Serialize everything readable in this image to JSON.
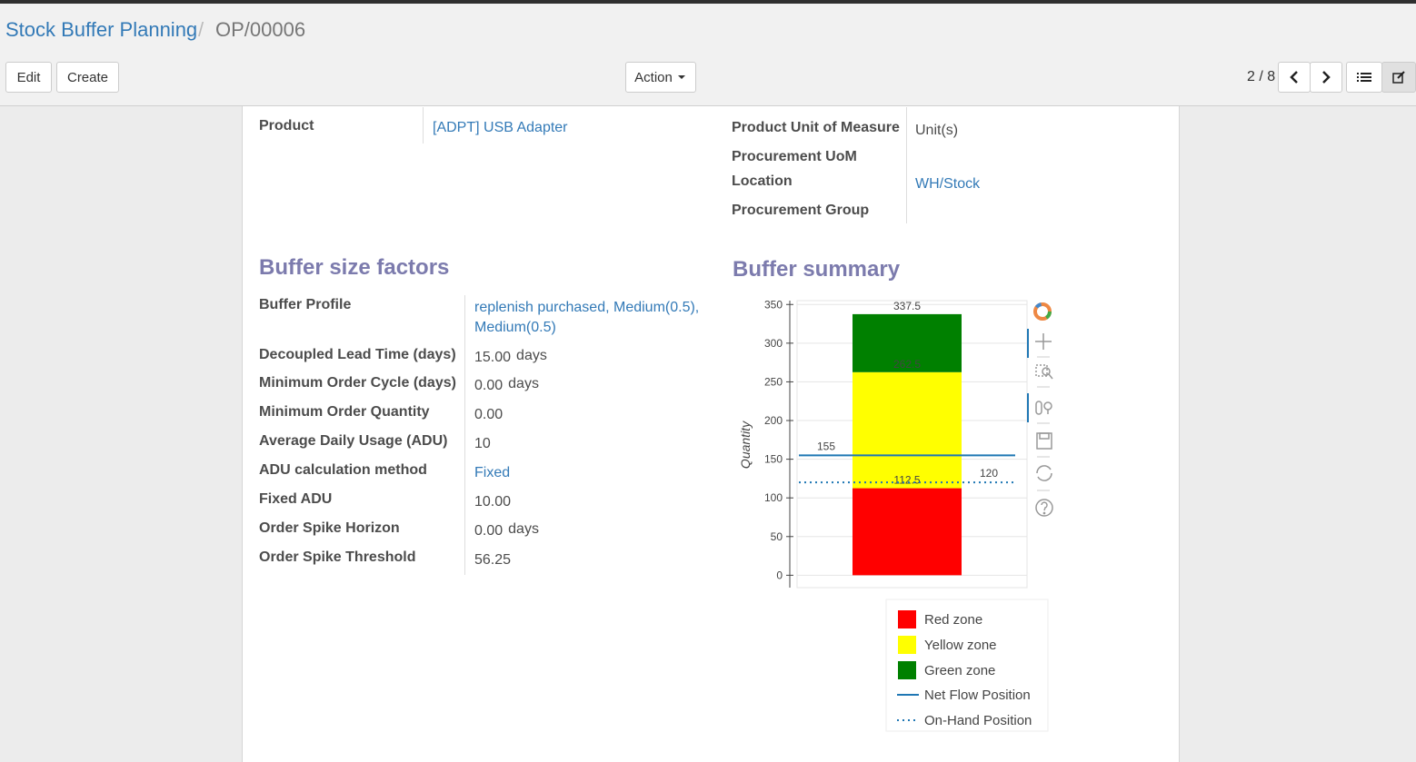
{
  "breadcrumb": {
    "parent": "Stock Buffer Planning",
    "separator": "/",
    "current": "OP/00006"
  },
  "buttons": {
    "edit": "Edit",
    "create": "Create",
    "action": "Action"
  },
  "pager": "2 / 8",
  "main_fields": {
    "left": [
      {
        "label": "Product",
        "value": "[ADPT] USB Adapter",
        "link": true
      }
    ],
    "right": [
      {
        "label": "Product Unit of Measure",
        "value": "Unit(s)"
      },
      {
        "label": "Procurement UoM"
      },
      {
        "label": "Location",
        "value": "WH/Stock",
        "link": true
      },
      {
        "label": "Procurement Group"
      }
    ]
  },
  "buffer_size_factors": {
    "title": "Buffer size factors",
    "fields": [
      {
        "label": "Buffer Profile",
        "value": "replenish purchased, Medium(0.5), Medium(0.5)",
        "link": true
      },
      {
        "label": "Decoupled Lead Time (days)",
        "value": "15.00",
        "unit": "days"
      },
      {
        "label": "Minimum Order Cycle (days)",
        "value": "0.00",
        "unit": "days"
      },
      {
        "label": "Minimum Order Quantity",
        "value": "0.00"
      },
      {
        "label": "Average Daily Usage (ADU)",
        "value": "10"
      },
      {
        "label": "ADU calculation method",
        "value": "Fixed",
        "link": true
      },
      {
        "label": "Fixed ADU",
        "value": "10.00"
      },
      {
        "label": "Order Spike Horizon",
        "value": "0.00",
        "unit": "days"
      },
      {
        "label": "Order Spike Threshold",
        "value": "56.25"
      }
    ]
  },
  "buffer_summary": {
    "title": "Buffer summary"
  },
  "chart_data": {
    "type": "bar",
    "y_label": "Quantity",
    "ylim": [
      -16,
      355
    ],
    "yticks": [
      0,
      50,
      100,
      150,
      200,
      250,
      300,
      350
    ],
    "grid": true,
    "series": [
      {
        "name": "Red zone",
        "color": "#ff0000",
        "low": [
          0
        ],
        "high": [
          112.5
        ]
      },
      {
        "name": "Yellow zone",
        "color": "#ffff00",
        "low": [
          112.5
        ],
        "high": [
          262.5
        ]
      },
      {
        "name": "Green zone",
        "color": "#008000",
        "low": [
          262.5
        ],
        "high": [
          337.5
        ]
      }
    ],
    "lines": [
      {
        "name": "Net Flow Position",
        "color": "#1f77b4",
        "style": "solid",
        "value": 155
      },
      {
        "name": "On-Hand Position",
        "color": "#1f77b4",
        "style": "dotted",
        "value": 120
      }
    ]
  }
}
